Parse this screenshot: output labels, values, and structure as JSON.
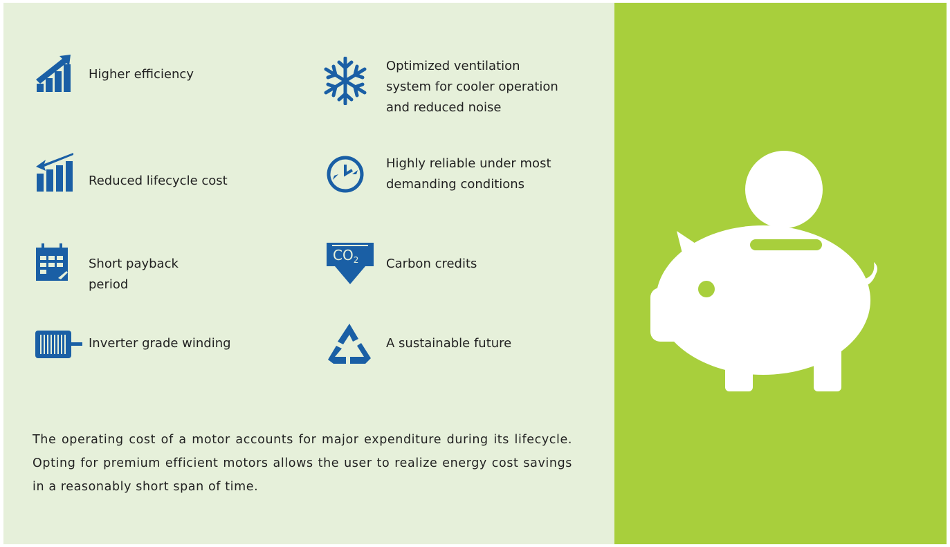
{
  "features": [
    {
      "lines": [
        "Higher efficiency"
      ]
    },
    {
      "lines": [
        "Optimized ventilation",
        "system for cooler operation",
        "and reduced noise"
      ]
    },
    {
      "lines": [
        "Reduced lifecycle cost"
      ]
    },
    {
      "lines": [
        "Highly reliable under most",
        "demanding conditions"
      ]
    },
    {
      "lines": [
        "Short payback",
        "period"
      ]
    },
    {
      "lines": [
        "Carbon credits"
      ]
    },
    {
      "lines": [
        "Inverter grade winding"
      ]
    },
    {
      "lines": [
        "A sustainable future"
      ]
    }
  ],
  "co2_icon": {
    "text": "CO",
    "sub": "2"
  },
  "paragraph": "The operating cost of a motor accounts for major expenditure during its lifecycle. Opting for premium efficient motors allows the user to realize energy cost savings in a reasonably short span of time."
}
